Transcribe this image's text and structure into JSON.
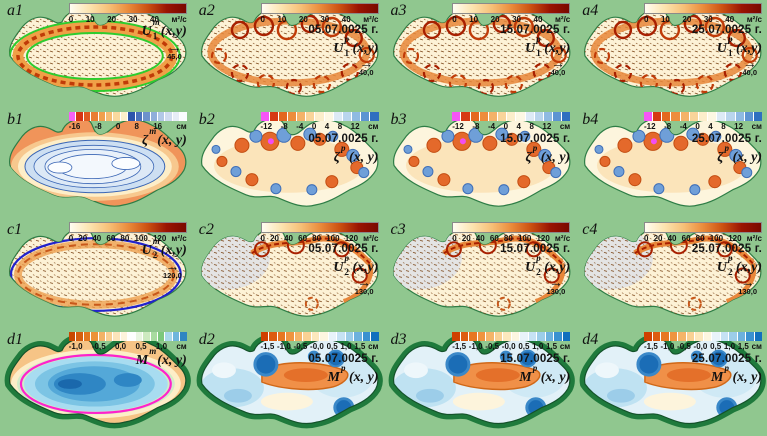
{
  "figure": {
    "description": "4x4 grid of Black Sea model fields: rows a (upper-layer velocity U1), b (sea level zeta), c (lower-layer velocity U2), d (interface displacement M); column 1 = mean field, columns 2-4 = synoptic fields at three dates"
  },
  "colors": {
    "background": "#90c78f",
    "land_dark": "#1f7a3c",
    "coast_outline": "#2e7d46",
    "extreme_magenta": "#f34df3"
  },
  "palettes": {
    "uv": [
      "#fffdf2",
      "#fce4b0",
      "#f6c078",
      "#ea8c3c",
      "#cc5212",
      "#9a1402",
      "#7a0800"
    ],
    "b1": [
      "#f661f6",
      "#d63413",
      "#e05a20",
      "#e97e33",
      "#f09f4c",
      "#f5bc72",
      "#f9d99e",
      "#fdf0cc",
      "#2d55ac",
      "#4a72bc",
      "#6d92cc",
      "#90aeda",
      "#b2c8e7",
      "#d0dcf0",
      "#e7edf7",
      "#fafcff"
    ],
    "bsyn": [
      "#f655f6",
      "#d63914",
      "#e4671f",
      "#ed8c3c",
      "#f4b269",
      "#f9d49a",
      "#fceecb",
      "#fdf8e4",
      "#ddeaf6",
      "#b9d5ed",
      "#8fbae2",
      "#5d94d2",
      "#2f6fc0"
    ],
    "d1": [
      "#c84800",
      "#d55f0e",
      "#e2771f",
      "#ec9338",
      "#f3b266",
      "#f9cf92",
      "#fce4ba",
      "#fef4dc",
      "#ffffff",
      "#eaf6e2",
      "#cdeac0",
      "#a8dba0",
      "#7cc87c",
      "#a8d8ea",
      "#6fb6dc",
      "#2f86c2"
    ],
    "dsyn": [
      "#d04000",
      "#dd5c10",
      "#e77722",
      "#ef9440",
      "#f5b468",
      "#f9d194",
      "#fce8bd",
      "#fdf6e0",
      "#e8f3fa",
      "#c6e2f4",
      "#9ccde9",
      "#6cb1dd",
      "#3a91d0",
      "#1170be"
    ]
  },
  "chart_data": [
    {
      "panel": "a1",
      "type": "vector_field_map",
      "region": "Black Sea",
      "variable": "U1^m(x,y)",
      "var": {
        "main": "U",
        "sub": "1",
        "sup": "m",
        "args": "(x,y)"
      },
      "date": "",
      "scale_arrow": "45,0",
      "colorbar": {
        "style": "gradient",
        "palette": "uv",
        "range": [
          0,
          40
        ],
        "ticks": [
          "0",
          "10",
          "20",
          "30",
          "40"
        ],
        "unit": "м²/с"
      }
    },
    {
      "panel": "a2",
      "type": "vector_field_map",
      "region": "Black Sea",
      "variable": "U1^p(x,y)",
      "var": {
        "main": "U",
        "sub": "1",
        "sup": "p",
        "args": "(x,y)"
      },
      "date": "05.07.0025 г.",
      "scale_arrow": "40,0",
      "colorbar": {
        "style": "gradient",
        "palette": "uv",
        "range": [
          0,
          40
        ],
        "ticks": [
          "0",
          "10",
          "20",
          "30",
          "40"
        ],
        "unit": "м²/с"
      }
    },
    {
      "panel": "a3",
      "type": "vector_field_map",
      "region": "Black Sea",
      "variable": "U1^p(x,y)",
      "var": {
        "main": "U",
        "sub": "1",
        "sup": "p",
        "args": "(x,y)"
      },
      "date": "15.07.0025 г.",
      "scale_arrow": "40,0",
      "colorbar": {
        "style": "gradient",
        "palette": "uv",
        "range": [
          0,
          40
        ],
        "ticks": [
          "0",
          "10",
          "20",
          "30",
          "40"
        ],
        "unit": "м²/с"
      }
    },
    {
      "panel": "a4",
      "type": "vector_field_map",
      "region": "Black Sea",
      "variable": "U1^p(x,y)",
      "var": {
        "main": "U",
        "sub": "1",
        "sup": "p",
        "args": "(x,y)"
      },
      "date": "25.07.0025 г.",
      "scale_arrow": "40,0",
      "colorbar": {
        "style": "gradient",
        "palette": "uv",
        "range": [
          0,
          40
        ],
        "ticks": [
          "0",
          "10",
          "20",
          "30",
          "40"
        ],
        "unit": "м²/с"
      }
    },
    {
      "panel": "b1",
      "type": "contour_map",
      "region": "Black Sea",
      "variable": "ζ^m(x, y)",
      "var": {
        "main": "ζ",
        "sub": "",
        "sup": "m",
        "args": "(x, y)"
      },
      "date": "",
      "scale_arrow": "",
      "colorbar": {
        "style": "segments",
        "palette": "b1",
        "range": [
          -16,
          16
        ],
        "ticks": [
          "-16",
          "-8",
          "0",
          "8",
          "16"
        ],
        "unit": "см"
      }
    },
    {
      "panel": "b2",
      "type": "contour_map",
      "region": "Black Sea",
      "variable": "ζ^p(x, y)",
      "var": {
        "main": "ζ",
        "sub": "",
        "sup": "p",
        "args": "(x, y)"
      },
      "date": "05.07.0025 г.",
      "scale_arrow": "",
      "colorbar": {
        "style": "segments",
        "palette": "bsyn",
        "range": [
          -12,
          12
        ],
        "ticks": [
          "-12",
          "-8",
          "-4",
          "0",
          "4",
          "8",
          "12"
        ],
        "unit": "см"
      }
    },
    {
      "panel": "b3",
      "type": "contour_map",
      "region": "Black Sea",
      "variable": "ζ^p(x, y)",
      "var": {
        "main": "ζ",
        "sub": "",
        "sup": "p",
        "args": "(x, y)"
      },
      "date": "15.07.0025 г.",
      "scale_arrow": "",
      "colorbar": {
        "style": "segments",
        "palette": "bsyn",
        "range": [
          -12,
          12
        ],
        "ticks": [
          "-12",
          "-8",
          "-4",
          "0",
          "4",
          "8",
          "12"
        ],
        "unit": "см"
      }
    },
    {
      "panel": "b4",
      "type": "contour_map",
      "region": "Black Sea",
      "variable": "ζ^p(x, y)",
      "var": {
        "main": "ζ",
        "sub": "",
        "sup": "p",
        "args": "(x, y)"
      },
      "date": "25.07.0025 г.",
      "scale_arrow": "",
      "colorbar": {
        "style": "segments",
        "palette": "bsyn",
        "range": [
          -12,
          12
        ],
        "ticks": [
          "-12",
          "-8",
          "-4",
          "0",
          "4",
          "8",
          "12"
        ],
        "unit": "см"
      }
    },
    {
      "panel": "c1",
      "type": "vector_field_map",
      "region": "Black Sea",
      "variable": "U2^m(x,y)",
      "var": {
        "main": "U",
        "sub": "2",
        "sup": "m",
        "args": "(x,y)"
      },
      "date": "",
      "scale_arrow": "120,0",
      "colorbar": {
        "style": "gradient",
        "palette": "uv",
        "range": [
          0,
          120
        ],
        "ticks": [
          "0",
          "20",
          "40",
          "60",
          "80",
          "100",
          "120"
        ],
        "unit": "м²/с"
      }
    },
    {
      "panel": "c2",
      "type": "vector_field_map",
      "region": "Black Sea",
      "variable": "U2^p(x,y)",
      "var": {
        "main": "U",
        "sub": "2",
        "sup": "p",
        "args": "(x,y)"
      },
      "date": "05.07.0025 г.",
      "scale_arrow": "130,0",
      "colorbar": {
        "style": "gradient",
        "palette": "uv",
        "range": [
          0,
          120
        ],
        "ticks": [
          "0",
          "20",
          "40",
          "60",
          "80",
          "100",
          "120"
        ],
        "unit": "м²/с"
      }
    },
    {
      "panel": "c3",
      "type": "vector_field_map",
      "region": "Black Sea",
      "variable": "U2^p(x,y)",
      "var": {
        "main": "U",
        "sub": "2",
        "sup": "p",
        "args": "(x,y)"
      },
      "date": "15.07.0025 г.",
      "scale_arrow": "130,0",
      "colorbar": {
        "style": "gradient",
        "palette": "uv",
        "range": [
          0,
          120
        ],
        "ticks": [
          "0",
          "20",
          "40",
          "60",
          "80",
          "100",
          "120"
        ],
        "unit": "м²/с"
      }
    },
    {
      "panel": "c4",
      "type": "vector_field_map",
      "region": "Black Sea",
      "variable": "U2^p(x,y)",
      "var": {
        "main": "U",
        "sub": "2",
        "sup": "p",
        "args": "(x,y)"
      },
      "date": "25.07.0025 г.",
      "scale_arrow": "130,0",
      "colorbar": {
        "style": "gradient",
        "palette": "uv",
        "range": [
          0,
          120
        ],
        "ticks": [
          "0",
          "20",
          "40",
          "60",
          "80",
          "100",
          "120"
        ],
        "unit": "м²/с"
      }
    },
    {
      "panel": "d1",
      "type": "contour_map",
      "region": "Black Sea",
      "variable": "M^m(x, y)",
      "var": {
        "main": "M",
        "sub": "",
        "sup": "m",
        "args": "(x, y)"
      },
      "date": "",
      "scale_arrow": "",
      "colorbar": {
        "style": "segments",
        "palette": "d1",
        "range": [
          -1.0,
          1.0
        ],
        "ticks": [
          "-1,0",
          "-0,5",
          "0,0",
          "0,5",
          "1,0"
        ],
        "unit": "см"
      }
    },
    {
      "panel": "d2",
      "type": "contour_map",
      "region": "Black Sea",
      "variable": "M^p(x, y)",
      "var": {
        "main": "M",
        "sub": "",
        "sup": "p",
        "args": "(x, y)"
      },
      "date": "05.07.0025 г.",
      "scale_arrow": "",
      "colorbar": {
        "style": "segments",
        "palette": "dsyn",
        "range": [
          -1.5,
          1.5
        ],
        "ticks": [
          "-1,5",
          "-1,0",
          "-0,5",
          "-0,0",
          "0,5",
          "1,0",
          "1,5"
        ],
        "unit": "см"
      }
    },
    {
      "panel": "d3",
      "type": "contour_map",
      "region": "Black Sea",
      "variable": "M^p(x, y)",
      "var": {
        "main": "M",
        "sub": "",
        "sup": "p",
        "args": "(x, y)"
      },
      "date": "15.07.0025 г.",
      "scale_arrow": "",
      "colorbar": {
        "style": "segments",
        "palette": "dsyn",
        "range": [
          -1.5,
          1.5
        ],
        "ticks": [
          "-1,5",
          "-1,0",
          "-0,5",
          "-0,0",
          "0,5",
          "1,0",
          "1,5"
        ],
        "unit": "см"
      }
    },
    {
      "panel": "d4",
      "type": "contour_map",
      "region": "Black Sea",
      "variable": "M^p(x, y)",
      "var": {
        "main": "M",
        "sub": "",
        "sup": "p",
        "args": "(x, y)"
      },
      "date": "25.07.0025 г.",
      "scale_arrow": "",
      "colorbar": {
        "style": "segments",
        "palette": "dsyn",
        "range": [
          -1.5,
          1.5
        ],
        "ticks": [
          "-1,5",
          "-1,0",
          "-0,5",
          "-0,0",
          "0,5",
          "1,0",
          "1,5"
        ],
        "unit": "см"
      }
    }
  ]
}
